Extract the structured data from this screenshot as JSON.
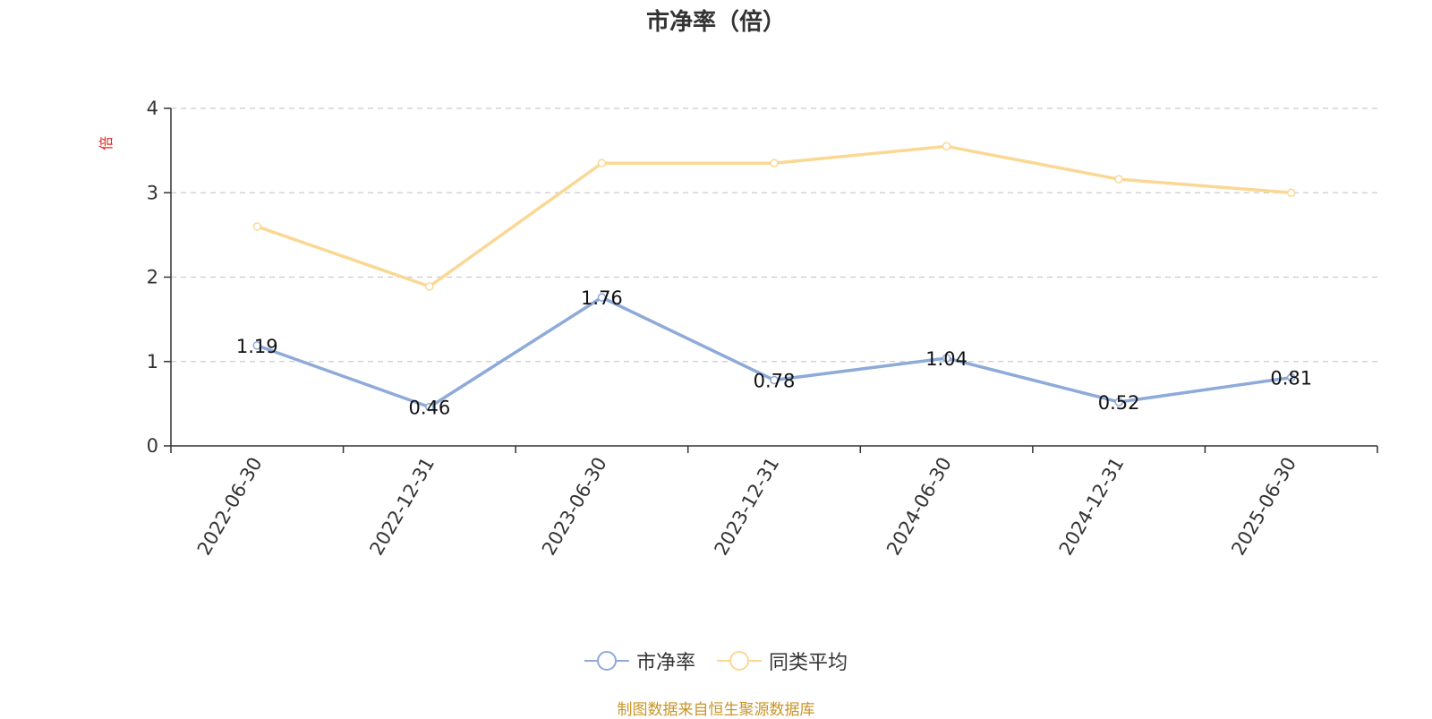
{
  "chart_data": {
    "type": "line",
    "title": "市净率（倍）",
    "ylabel": "倍",
    "xlabel": "",
    "categories": [
      "2022-06-30",
      "2022-12-31",
      "2023-06-30",
      "2023-12-31",
      "2024-06-30",
      "2024-12-31",
      "2025-06-30"
    ],
    "ylim": [
      0,
      4
    ],
    "yticks": [
      0,
      1,
      2,
      3,
      4
    ],
    "grid": true,
    "legend_position": "bottom",
    "series": [
      {
        "name": "市净率",
        "color": "#8eaad9",
        "values": [
          1.19,
          0.46,
          1.76,
          0.78,
          1.04,
          0.52,
          0.81
        ],
        "labels_shown": true
      },
      {
        "name": "同类平均",
        "color": "#fad894",
        "values": [
          2.6,
          1.89,
          3.35,
          3.35,
          3.55,
          3.16,
          3.0
        ],
        "labels_shown": false
      }
    ]
  },
  "footer": {
    "source": "制图数据来自恒生聚源数据库"
  },
  "colors": {
    "title": "#333333",
    "axis": "#333333",
    "grid": "#cccccc",
    "ylabel": "#e8231b",
    "source": "#c8952a"
  }
}
